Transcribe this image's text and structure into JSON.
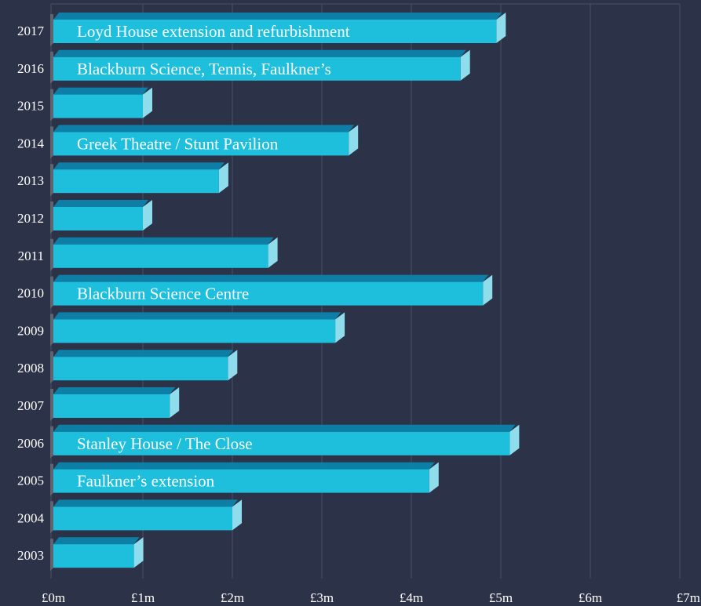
{
  "chart_data": {
    "type": "bar",
    "orientation": "horizontal",
    "style": "3d",
    "categories": [
      "2017",
      "2016",
      "2015",
      "2014",
      "2013",
      "2012",
      "2011",
      "2010",
      "2009",
      "2008",
      "2007",
      "2006",
      "2005",
      "2004",
      "2003"
    ],
    "values": [
      4.95,
      4.55,
      1.0,
      3.3,
      1.85,
      1.0,
      2.4,
      4.8,
      3.15,
      1.95,
      1.3,
      5.1,
      4.2,
      2.0,
      0.9
    ],
    "bar_labels": [
      "Loyd House extension and refurbishment",
      "Blackburn Science, Tennis, Faulkner’s",
      "",
      "Greek Theatre / Stunt Pavilion",
      "",
      "",
      "",
      "Blackburn Science Centre",
      "",
      "",
      "",
      "Stanley House / The Close",
      "Faulkner’s extension",
      "",
      ""
    ],
    "xlim": [
      0,
      7
    ],
    "x_ticks": [
      0,
      1,
      2,
      3,
      4,
      5,
      6,
      7
    ],
    "x_tick_labels": [
      "£0m",
      "£1m",
      "£2m",
      "£3m",
      "£4m",
      "£5m",
      "£6m",
      "£7m"
    ],
    "grid": "vertical",
    "colors": {
      "background": "#2c3247",
      "bar_front": "#1ebfdc",
      "bar_top": "#0d7fa6",
      "bar_side": "#8fdcec",
      "bar_base": "#5f6570",
      "grid": "#4a5066",
      "text": "#ffffff"
    }
  }
}
